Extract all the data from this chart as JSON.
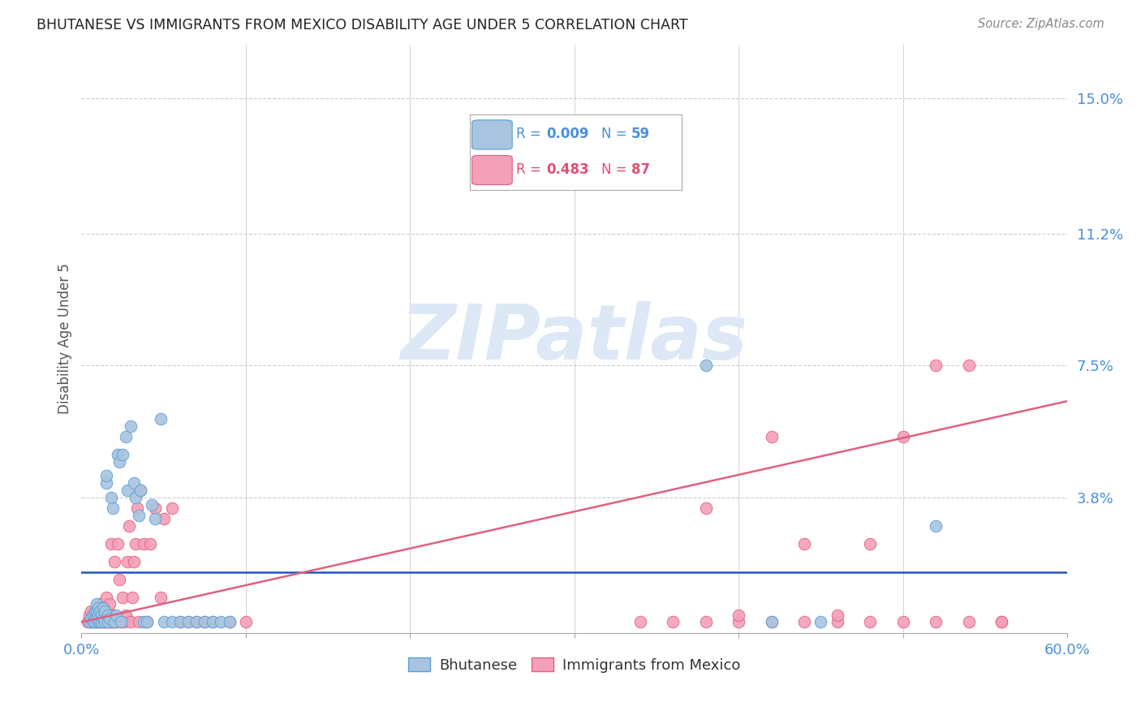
{
  "title": "BHUTANESE VS IMMIGRANTS FROM MEXICO DISABILITY AGE UNDER 5 CORRELATION CHART",
  "source": "Source: ZipAtlas.com",
  "ylabel": "Disability Age Under 5",
  "xlim": [
    0.0,
    0.6
  ],
  "ylim": [
    0.0,
    0.165
  ],
  "yticks": [
    0.038,
    0.075,
    0.112,
    0.15
  ],
  "ytick_labels": [
    "3.8%",
    "7.5%",
    "11.2%",
    "15.0%"
  ],
  "xticks": [
    0.0,
    0.1,
    0.2,
    0.3,
    0.4,
    0.5,
    0.6
  ],
  "legend1_label": "Bhutanese",
  "legend2_label": "Immigrants from Mexico",
  "r1": "0.009",
  "n1": "59",
  "r2": "0.483",
  "n2": "87",
  "color_blue": "#a8c4e0",
  "color_pink": "#f4a0b8",
  "color_blue_edge": "#5a9fd4",
  "color_pink_edge": "#e06080",
  "color_blue_text": "#4a90d9",
  "color_pink_text": "#e05070",
  "line_blue": "#2255bb",
  "line_pink": "#e06080",
  "bg_color": "#ffffff",
  "grid_color": "#cccccc",
  "title_color": "#222222",
  "bhutanese_x": [
    0.005,
    0.006,
    0.007,
    0.007,
    0.008,
    0.008,
    0.008,
    0.009,
    0.009,
    0.009,
    0.01,
    0.01,
    0.01,
    0.011,
    0.011,
    0.012,
    0.012,
    0.013,
    0.013,
    0.014,
    0.014,
    0.015,
    0.015,
    0.016,
    0.016,
    0.017,
    0.018,
    0.019,
    0.02,
    0.021,
    0.022,
    0.023,
    0.024,
    0.025,
    0.027,
    0.028,
    0.03,
    0.032,
    0.033,
    0.035,
    0.036,
    0.038,
    0.04,
    0.043,
    0.045,
    0.048,
    0.05,
    0.055,
    0.06,
    0.065,
    0.07,
    0.075,
    0.08,
    0.085,
    0.09,
    0.38,
    0.42,
    0.45,
    0.52
  ],
  "bhutanese_y": [
    0.003,
    0.004,
    0.003,
    0.005,
    0.004,
    0.006,
    0.003,
    0.004,
    0.006,
    0.008,
    0.003,
    0.005,
    0.007,
    0.003,
    0.006,
    0.003,
    0.005,
    0.004,
    0.007,
    0.003,
    0.006,
    0.042,
    0.044,
    0.003,
    0.005,
    0.004,
    0.038,
    0.035,
    0.003,
    0.005,
    0.05,
    0.048,
    0.003,
    0.05,
    0.055,
    0.04,
    0.058,
    0.042,
    0.038,
    0.033,
    0.04,
    0.003,
    0.003,
    0.036,
    0.032,
    0.06,
    0.003,
    0.003,
    0.003,
    0.003,
    0.003,
    0.003,
    0.003,
    0.003,
    0.003,
    0.075,
    0.003,
    0.003,
    0.03
  ],
  "mexico_x": [
    0.004,
    0.005,
    0.005,
    0.006,
    0.006,
    0.007,
    0.007,
    0.008,
    0.008,
    0.009,
    0.009,
    0.01,
    0.01,
    0.011,
    0.011,
    0.012,
    0.012,
    0.013,
    0.013,
    0.014,
    0.014,
    0.015,
    0.015,
    0.016,
    0.016,
    0.017,
    0.017,
    0.018,
    0.018,
    0.019,
    0.019,
    0.02,
    0.02,
    0.021,
    0.022,
    0.023,
    0.024,
    0.025,
    0.026,
    0.027,
    0.028,
    0.029,
    0.03,
    0.031,
    0.032,
    0.033,
    0.034,
    0.035,
    0.036,
    0.038,
    0.04,
    0.042,
    0.045,
    0.048,
    0.05,
    0.055,
    0.06,
    0.065,
    0.07,
    0.075,
    0.08,
    0.09,
    0.1,
    0.3,
    0.32,
    0.34,
    0.36,
    0.38,
    0.4,
    0.42,
    0.44,
    0.46,
    0.48,
    0.5,
    0.52,
    0.54,
    0.56,
    0.38,
    0.4,
    0.42,
    0.44,
    0.46,
    0.48,
    0.5,
    0.52,
    0.54,
    0.56
  ],
  "mexico_y": [
    0.003,
    0.003,
    0.005,
    0.003,
    0.006,
    0.003,
    0.005,
    0.003,
    0.005,
    0.003,
    0.006,
    0.004,
    0.007,
    0.003,
    0.008,
    0.003,
    0.007,
    0.003,
    0.006,
    0.003,
    0.005,
    0.003,
    0.01,
    0.003,
    0.006,
    0.003,
    0.008,
    0.003,
    0.025,
    0.003,
    0.005,
    0.003,
    0.02,
    0.003,
    0.025,
    0.015,
    0.003,
    0.01,
    0.003,
    0.005,
    0.02,
    0.03,
    0.003,
    0.01,
    0.02,
    0.025,
    0.035,
    0.003,
    0.04,
    0.025,
    0.003,
    0.025,
    0.035,
    0.01,
    0.032,
    0.035,
    0.003,
    0.003,
    0.003,
    0.003,
    0.003,
    0.003,
    0.003,
    0.13,
    0.135,
    0.003,
    0.003,
    0.003,
    0.003,
    0.003,
    0.003,
    0.003,
    0.003,
    0.055,
    0.003,
    0.075,
    0.003,
    0.035,
    0.005,
    0.055,
    0.025,
    0.005,
    0.025,
    0.003,
    0.075,
    0.003,
    0.003
  ],
  "watermark": "ZIPatlas",
  "watermark_color": "#dce8f5"
}
